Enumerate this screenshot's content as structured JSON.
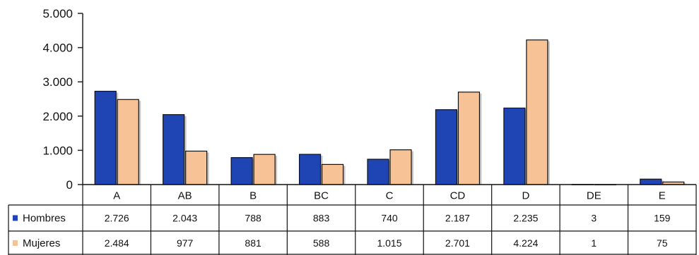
{
  "chart_data": {
    "type": "bar",
    "categories": [
      "A",
      "AB",
      "B",
      "BC",
      "C",
      "CD",
      "D",
      "DE",
      "E"
    ],
    "series": [
      {
        "name": "Hombres",
        "color": "#1f45b4",
        "values": [
          2726,
          2043,
          788,
          883,
          740,
          2187,
          2235,
          3,
          159
        ],
        "labels": [
          "2.726",
          "2.043",
          "788",
          "883",
          "740",
          "2.187",
          "2.235",
          "3",
          "159"
        ]
      },
      {
        "name": "Mujeres",
        "color": "#f7c396",
        "values": [
          2484,
          977,
          881,
          588,
          1015,
          2701,
          4224,
          1,
          75
        ],
        "labels": [
          "2.484",
          "977",
          "881",
          "588",
          "1.015",
          "2.701",
          "4.224",
          "1",
          "75"
        ]
      }
    ],
    "ylim": [
      0,
      5000
    ],
    "yticks": [
      0,
      1000,
      2000,
      3000,
      4000,
      5000
    ],
    "ytick_labels": [
      "0",
      "1.000",
      "2.000",
      "3.000",
      "4.000",
      "5.000"
    ],
    "grid": false,
    "legend": "data-table-left"
  }
}
